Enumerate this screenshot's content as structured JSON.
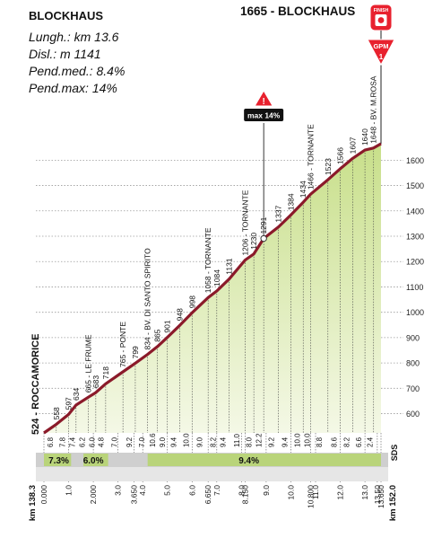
{
  "header": {
    "name": "BLOCKHAUS",
    "stats": [
      "Lungh.: km 13.6",
      "Disl.: m 1141",
      "Pend.med.: 8.4%",
      "Pend.max: 14%"
    ],
    "summit": "1665 - BLOCKHAUS",
    "finish_badge": "FINISH",
    "gpm_badge": "GPM",
    "gpm_category": "1",
    "max_badge": "max 14%"
  },
  "colors": {
    "profile_line": "#8b1a2a",
    "fill_top": "#c8df8a",
    "fill_bottom": "#f4f8e6",
    "sds_band": "#cfcfcf",
    "highlight_band": "#b9d47a",
    "finish_red": "#e8212e"
  },
  "chart_data": {
    "type": "area",
    "title": "",
    "xlabel": "",
    "ylabel": "",
    "ylim": [
      524,
      1665
    ],
    "y_ticks": [
      600,
      700,
      800,
      900,
      1000,
      1100,
      1200,
      1300,
      1400,
      1500,
      1600
    ],
    "series": [
      {
        "points": [
          {
            "x": 0.0,
            "y": 524
          },
          {
            "x": 0.5,
            "y": 558
          },
          {
            "x": 1.0,
            "y": 597
          },
          {
            "x": 1.3,
            "y": 634
          },
          {
            "x": 1.8,
            "y": 665
          },
          {
            "x": 2.1,
            "y": 683
          },
          {
            "x": 2.5,
            "y": 718
          },
          {
            "x": 3.2,
            "y": 765
          },
          {
            "x": 3.7,
            "y": 799
          },
          {
            "x": 4.2,
            "y": 834
          },
          {
            "x": 4.6,
            "y": 865
          },
          {
            "x": 5.0,
            "y": 901
          },
          {
            "x": 5.5,
            "y": 948
          },
          {
            "x": 6.0,
            "y": 998
          },
          {
            "x": 6.65,
            "y": 1058
          },
          {
            "x": 7.0,
            "y": 1084
          },
          {
            "x": 7.5,
            "y": 1131
          },
          {
            "x": 8.15,
            "y": 1206
          },
          {
            "x": 8.5,
            "y": 1230
          },
          {
            "x": 8.9,
            "y": 1291
          },
          {
            "x": 9.5,
            "y": 1337
          },
          {
            "x": 10.0,
            "y": 1384
          },
          {
            "x": 10.5,
            "y": 1434
          },
          {
            "x": 10.8,
            "y": 1466
          },
          {
            "x": 11.5,
            "y": 1523
          },
          {
            "x": 12.0,
            "y": 1566
          },
          {
            "x": 12.5,
            "y": 1607
          },
          {
            "x": 13.0,
            "y": 1640
          },
          {
            "x": 13.35,
            "y": 1648
          },
          {
            "x": 13.65,
            "y": 1665
          }
        ]
      }
    ],
    "profile_labels": [
      {
        "x": 0.0,
        "text": "524 - ROCCAMORICE"
      },
      {
        "x": 0.5,
        "text": "558"
      },
      {
        "x": 1.0,
        "text": "597"
      },
      {
        "x": 1.3,
        "text": "634"
      },
      {
        "x": 1.8,
        "text": "665 - LE FRUME"
      },
      {
        "x": 2.1,
        "text": "683"
      },
      {
        "x": 2.5,
        "text": "718"
      },
      {
        "x": 3.2,
        "text": "765 - PONTE"
      },
      {
        "x": 3.7,
        "text": "799"
      },
      {
        "x": 4.2,
        "text": "834 - BV. DI SANTO SPIRITO"
      },
      {
        "x": 4.6,
        "text": "865"
      },
      {
        "x": 5.0,
        "text": "901"
      },
      {
        "x": 5.5,
        "text": "948"
      },
      {
        "x": 6.0,
        "text": "998"
      },
      {
        "x": 6.65,
        "text": "1058 - TORNANTE"
      },
      {
        "x": 7.0,
        "text": "1084"
      },
      {
        "x": 7.5,
        "text": "1131"
      },
      {
        "x": 8.15,
        "text": "1206 - TORNANTE"
      },
      {
        "x": 8.5,
        "text": "1230"
      },
      {
        "x": 8.9,
        "text": "1291"
      },
      {
        "x": 9.5,
        "text": "1337"
      },
      {
        "x": 10.0,
        "text": "1384"
      },
      {
        "x": 10.5,
        "text": "1434"
      },
      {
        "x": 10.8,
        "text": "1466 - TORNANTE"
      },
      {
        "x": 11.5,
        "text": "1523"
      },
      {
        "x": 12.0,
        "text": "1566"
      },
      {
        "x": 12.5,
        "text": "1607"
      },
      {
        "x": 13.0,
        "text": "1640"
      },
      {
        "x": 13.35,
        "text": "1648 - BV. M.ROSA"
      }
    ],
    "max_marker_x": 8.9,
    "segment_gradients": [
      {
        "x": 0.25,
        "text": "6.8"
      },
      {
        "x": 0.75,
        "text": "7.8"
      },
      {
        "x": 1.15,
        "text": "7.4"
      },
      {
        "x": 1.55,
        "text": "6.2"
      },
      {
        "x": 1.95,
        "text": "6.0"
      },
      {
        "x": 2.3,
        "text": "4.8"
      },
      {
        "x": 2.85,
        "text": "7.0"
      },
      {
        "x": 3.45,
        "text": "9.2"
      },
      {
        "x": 3.95,
        "text": "7.0"
      },
      {
        "x": 4.4,
        "text": "10.6"
      },
      {
        "x": 4.8,
        "text": "9.0"
      },
      {
        "x": 5.25,
        "text": "9.4"
      },
      {
        "x": 5.75,
        "text": "10.0"
      },
      {
        "x": 6.3,
        "text": "9.0"
      },
      {
        "x": 6.85,
        "text": "8.2"
      },
      {
        "x": 7.25,
        "text": "9.4"
      },
      {
        "x": 7.8,
        "text": "11.0"
      },
      {
        "x": 8.3,
        "text": "8.0"
      },
      {
        "x": 8.7,
        "text": "12.2"
      },
      {
        "x": 9.2,
        "text": "9.2"
      },
      {
        "x": 9.75,
        "text": "9.4"
      },
      {
        "x": 10.25,
        "text": "10.0"
      },
      {
        "x": 10.65,
        "text": "10.0"
      },
      {
        "x": 11.15,
        "text": "8.8"
      },
      {
        "x": 11.75,
        "text": "8.6"
      },
      {
        "x": 12.25,
        "text": "8.2"
      },
      {
        "x": 12.75,
        "text": "6.6"
      },
      {
        "x": 13.2,
        "text": "2.4"
      }
    ],
    "band_labels": [
      {
        "x": 0.6,
        "text": "7.3%"
      },
      {
        "x": 2.0,
        "text": "6.0%"
      },
      {
        "x": 8.3,
        "text": "9.4%"
      }
    ],
    "band_highlights": [
      [
        0.0,
        1.1
      ],
      [
        1.6,
        2.6
      ],
      [
        4.2,
        13.65
      ]
    ],
    "sds_label": "SDS",
    "km_ticks": [
      {
        "x": 0.0,
        "text": "0.000"
      },
      {
        "x": 1.0,
        "text": "1.0"
      },
      {
        "x": 2.0,
        "text": "2.000"
      },
      {
        "x": 3.0,
        "text": "3.0"
      },
      {
        "x": 3.65,
        "text": "3.650"
      },
      {
        "x": 4.0,
        "text": "4.0"
      },
      {
        "x": 5.0,
        "text": "5.0"
      },
      {
        "x": 6.0,
        "text": "6.0"
      },
      {
        "x": 6.65,
        "text": "6.650"
      },
      {
        "x": 7.0,
        "text": "7.0"
      },
      {
        "x": 8.0,
        "text": "8.0"
      },
      {
        "x": 8.15,
        "text": "8.150"
      },
      {
        "x": 9.0,
        "text": "9.0"
      },
      {
        "x": 10.0,
        "text": "10.0"
      },
      {
        "x": 10.8,
        "text": "10.800"
      },
      {
        "x": 11.0,
        "text": "11.0"
      },
      {
        "x": 12.0,
        "text": "12.0"
      },
      {
        "x": 13.0,
        "text": "13.0"
      },
      {
        "x": 13.5,
        "text": "13.50"
      },
      {
        "x": 13.65,
        "text": "13.650"
      }
    ],
    "km_start": "km 138.3",
    "km_end": "km 152.0"
  }
}
